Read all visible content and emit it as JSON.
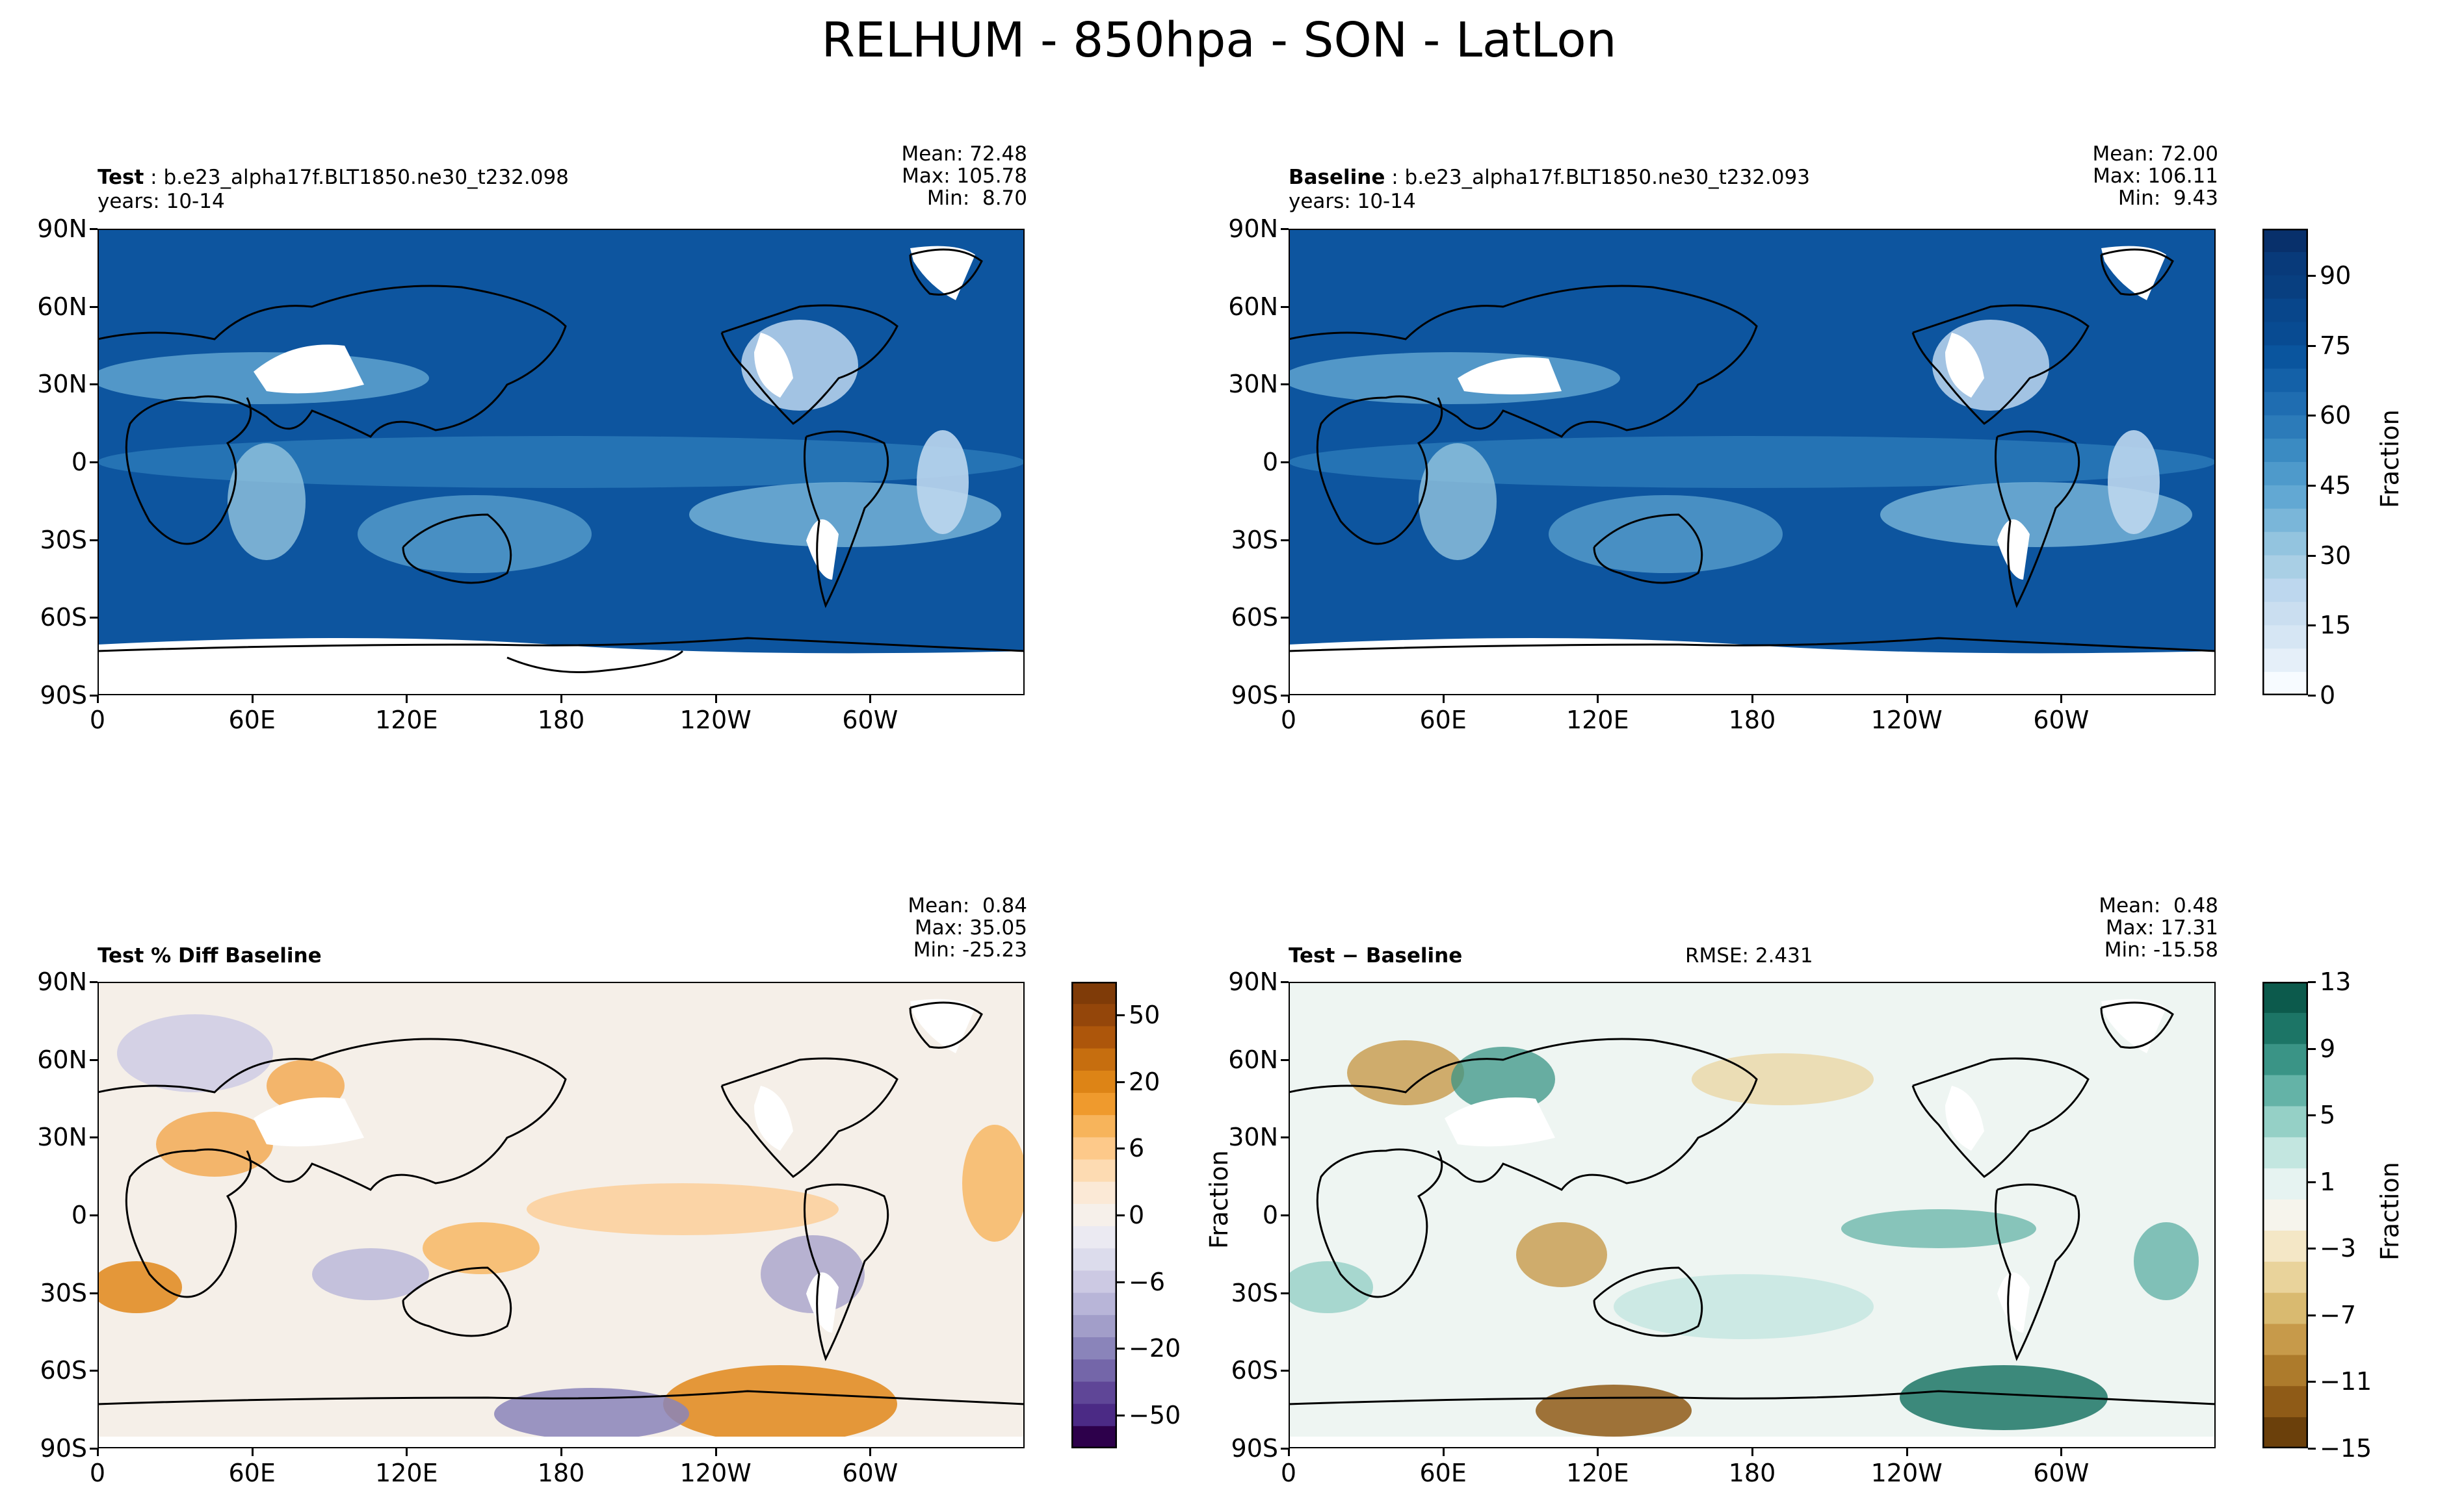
{
  "figure": {
    "title": "RELHUM - 850hpa - SON - LatLon"
  },
  "lat_ticks": [
    "90N",
    "60N",
    "30N",
    "0",
    "30S",
    "60S",
    "90S"
  ],
  "lon_ticks": [
    "0",
    "60E",
    "120E",
    "180",
    "120W",
    "60W"
  ],
  "panels": {
    "test": {
      "label_bold": "Test",
      "label_rest": " : b.e23_alpha17f.BLT1850.ne30_t232.098",
      "years": "years: 10-14",
      "stats": "Mean: 72.48\nMax: 105.78\nMin:  8.70"
    },
    "baseline": {
      "label_bold": "Baseline",
      "label_rest": " : b.e23_alpha17f.BLT1850.ne30_t232.093",
      "years": "years: 10-14",
      "stats": "Mean: 72.00\nMax: 106.11\nMin:  9.43"
    },
    "pctdiff": {
      "label_bold": "Test % Diff Baseline",
      "stats": "Mean:  0.84\nMax: 35.05\nMin: -25.23"
    },
    "diff": {
      "label_bold": "Test − Baseline",
      "rmse": "RMSE: 2.431",
      "stats": "Mean:  0.48\nMax: 17.31\nMin: -15.58",
      "ylabel": "Fraction"
    }
  },
  "colorbars": {
    "main": {
      "label": "Fraction",
      "ticks": [
        "90",
        "75",
        "60",
        "45",
        "30",
        "15",
        "0"
      ],
      "levels": [
        0,
        5,
        10,
        15,
        20,
        25,
        30,
        35,
        40,
        45,
        50,
        55,
        60,
        65,
        70,
        75,
        80,
        85,
        90,
        95,
        100
      ],
      "colors": [
        "#f7fbff",
        "#e5eff9",
        "#d6e6f4",
        "#cadef0",
        "#bdd7ee",
        "#a9cfe5",
        "#93c4df",
        "#7ab6d9",
        "#62a8d3",
        "#4e9acb",
        "#3b8bc2",
        "#2c7bb9",
        "#1f6db1",
        "#1461a8",
        "#0a559e",
        "#084b92",
        "#08468b",
        "#083f80",
        "#083a7a",
        "#08306b"
      ]
    },
    "pctdiff": {
      "ticks": [
        "50",
        "20",
        "6",
        "0",
        "−6",
        "−20",
        "−50"
      ],
      "colors_top_to_bottom": [
        "#7f3b08",
        "#94460a",
        "#ad560b",
        "#c66e0f",
        "#dd8416",
        "#ef9a2d",
        "#f7b45b",
        "#fdc98a",
        "#fddbb2",
        "#fbe9d6",
        "#f6f0ea",
        "#ebeaf2",
        "#dcdcec",
        "#ccc9e3",
        "#b8b5d8",
        "#a29ec9",
        "#8a84ba",
        "#7466a9",
        "#5f4697",
        "#4b2a85",
        "#2d004b"
      ]
    },
    "diff": {
      "label": "Fraction",
      "ticks": [
        "13",
        "9",
        "5",
        "1",
        "−3",
        "−7",
        "−11",
        "−15"
      ],
      "colors_top_to_bottom": [
        "#0c5a4c",
        "#1c7566",
        "#3a9486",
        "#64b3a7",
        "#95d0c6",
        "#c3e6e0",
        "#e6f3f1",
        "#f6f4ec",
        "#f4e7c6",
        "#e9d39b",
        "#d9ba70",
        "#c79a4a",
        "#ad7b2c",
        "#8f5b17",
        "#6b400b"
      ]
    }
  },
  "chart_data": [
    {
      "type": "heatmap",
      "title": "Test : b.e23_alpha17f.BLT1850.ne30_t232.098",
      "x": [
        "0",
        "60E",
        "120E",
        "180",
        "120W",
        "60W"
      ],
      "y": [
        "90N",
        "60N",
        "30N",
        "0",
        "30S",
        "60S",
        "90S"
      ],
      "colorbar_label": "Fraction",
      "colorbar_range": [
        0,
        100
      ],
      "summary": {
        "mean": 72.48,
        "max": 105.78,
        "min": 8.7
      }
    },
    {
      "type": "heatmap",
      "title": "Baseline : b.e23_alpha17f.BLT1850.ne30_t232.093",
      "x": [
        "0",
        "60E",
        "120E",
        "180",
        "120W",
        "60W"
      ],
      "y": [
        "90N",
        "60N",
        "30N",
        "0",
        "30S",
        "60S",
        "90S"
      ],
      "colorbar_label": "Fraction",
      "colorbar_range": [
        0,
        100
      ],
      "summary": {
        "mean": 72.0,
        "max": 106.11,
        "min": 9.43
      }
    },
    {
      "type": "heatmap",
      "title": "Test % Diff Baseline",
      "x": [
        "0",
        "60E",
        "120E",
        "180",
        "120W",
        "60W"
      ],
      "y": [
        "90N",
        "60N",
        "30N",
        "0",
        "30S",
        "60S",
        "90S"
      ],
      "colorbar_ticks": [
        50,
        20,
        6,
        0,
        -6,
        -20,
        -50
      ],
      "summary": {
        "mean": 0.84,
        "max": 35.05,
        "min": -25.23
      }
    },
    {
      "type": "heatmap",
      "title": "Test − Baseline",
      "x": [
        "0",
        "60E",
        "120E",
        "180",
        "120W",
        "60W"
      ],
      "y": [
        "90N",
        "60N",
        "30N",
        "0",
        "30S",
        "60S",
        "90S"
      ],
      "colorbar_label": "Fraction",
      "colorbar_ticks": [
        13,
        9,
        5,
        1,
        -3,
        -7,
        -11,
        -15
      ],
      "summary": {
        "mean": 0.48,
        "max": 17.31,
        "min": -15.58,
        "rmse": 2.431
      }
    }
  ]
}
